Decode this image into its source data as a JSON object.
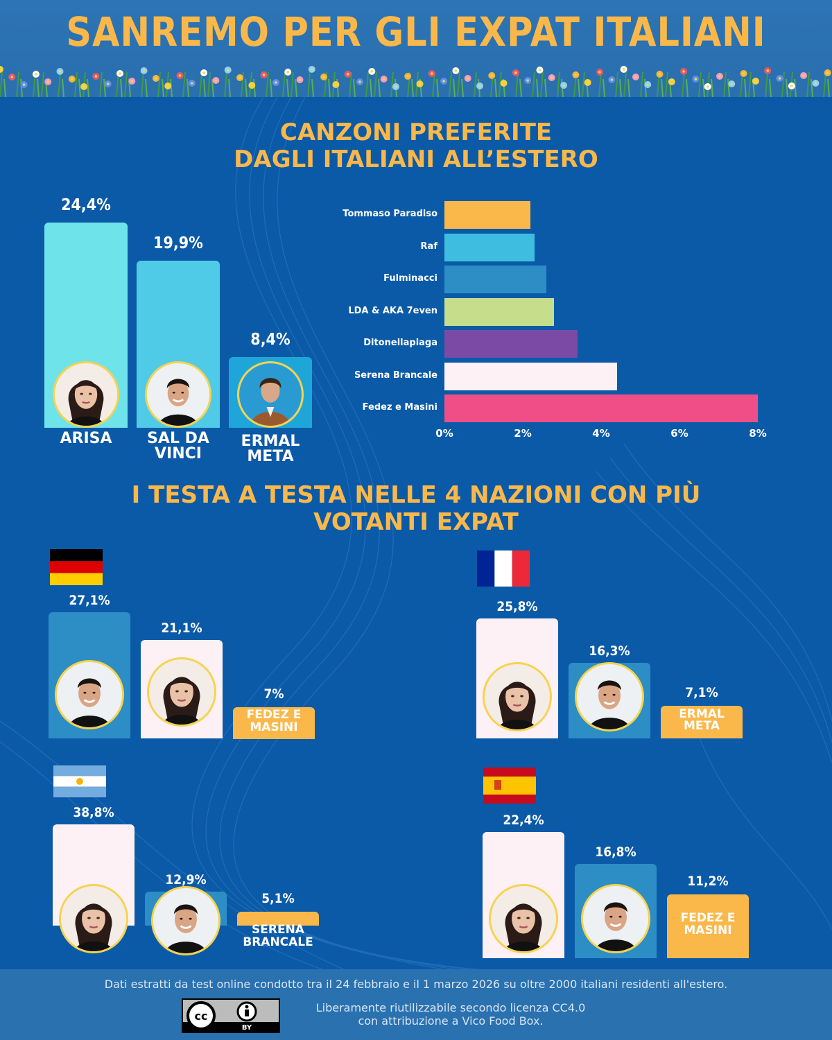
{
  "header": {
    "title": "SANREMO PER GLI EXPAT ITALIANI"
  },
  "section1": {
    "title_line1": "CANZONI PREFERITE",
    "title_line2": "DAGLI ITALIANI ALL’ESTERO"
  },
  "section2": {
    "title_line1": "I TESTA A TESTA NELLE 4 NAZIONI CON PIÙ",
    "title_line2": "VOTANTI EXPAT"
  },
  "chart_data": [
    {
      "type": "bar",
      "categories": [
        "ARISA",
        "SAL DA VINCI",
        "ERMAL META"
      ],
      "values": [
        24.4,
        19.9,
        8.4
      ],
      "value_labels": [
        "24,4%",
        "19,9%",
        "8,4%"
      ],
      "name_lines": [
        [
          "ARISA"
        ],
        [
          "SAL DA",
          "VINCI"
        ],
        [
          "ERMAL",
          "META"
        ]
      ],
      "colors": [
        "#6ee3ea",
        "#4fcbe8",
        "#1fa6d8"
      ],
      "ylim": [
        0,
        24.4
      ]
    },
    {
      "type": "bar",
      "orientation": "horizontal",
      "categories": [
        "Tommaso Paradiso",
        "Raf",
        "Fulminacci",
        "LDA & AKA 7even",
        "Ditonellapiaga",
        "Serena Brancale",
        "Fedez e Masini"
      ],
      "values": [
        2.2,
        2.3,
        2.6,
        2.8,
        3.4,
        4.4,
        8.0
      ],
      "colors": [
        "#fbb84a",
        "#3fbde0",
        "#2c8ec5",
        "#c6dd8c",
        "#7b4aa5",
        "#fdf1f5",
        "#ef4f86"
      ],
      "xlim": [
        0,
        8
      ],
      "xticks": [
        "0%",
        "2%",
        "4%",
        "6%",
        "8%"
      ]
    },
    {
      "type": "bar",
      "country": "Germania",
      "categories": [
        "SAL DA VINCI",
        "ARISA",
        "FEDEZ E MASINI"
      ],
      "values": [
        27.1,
        21.1,
        7
      ],
      "value_labels": [
        "27,1%",
        "21,1%",
        "7%"
      ],
      "label_lines": [
        "FEDEZ E",
        "MASINI"
      ]
    },
    {
      "type": "bar",
      "country": "Francia",
      "categories": [
        "ARISA",
        "SAL DA VINCI",
        "ERMAL META"
      ],
      "values": [
        25.8,
        16.3,
        7.1
      ],
      "value_labels": [
        "25,8%",
        "16,3%",
        "7,1%"
      ],
      "label_lines": [
        "ERMAL",
        "META"
      ]
    },
    {
      "type": "bar",
      "country": "Argentina",
      "categories": [
        "ARISA",
        "SAL DA VINCI",
        "SERENA BRANCALE"
      ],
      "values": [
        38.8,
        12.9,
        5.1
      ],
      "value_labels": [
        "38,8%",
        "12,9%",
        "5,1%"
      ],
      "label_lines": [
        "SERENA",
        "BRANCALE"
      ]
    },
    {
      "type": "bar",
      "country": "Spagna",
      "categories": [
        "ARISA",
        "SAL DA VINCI",
        "FEDEZ E MASINI"
      ],
      "values": [
        22.4,
        16.8,
        11.2
      ],
      "value_labels": [
        "22,4%",
        "16,8%",
        "11,2%"
      ],
      "label_lines": [
        "FEDEZ E",
        "MASINI"
      ]
    }
  ],
  "footer": {
    "note": "Dati estratti da test online condotto tra il 24 febbraio e il 1 marzo 2026 su oltre 2000 italiani residenti all'estero.",
    "license_line1": "Liberamente riutilizzabile secondo licenza CC4.0",
    "license_line2": "con attribuzione a Vico Food Box.",
    "badge_text": "BY"
  },
  "colors": {
    "accent": "#fbb84a",
    "background": "#0b5aa8"
  }
}
